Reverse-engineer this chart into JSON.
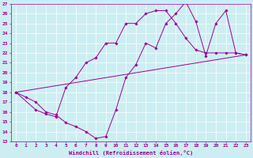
{
  "xlabel": "Windchill (Refroidissement éolien,°C)",
  "bg_color": "#cceef2",
  "line_color": "#990099",
  "xlim": [
    -0.5,
    23.5
  ],
  "ylim": [
    13,
    27
  ],
  "xticks": [
    0,
    1,
    2,
    3,
    4,
    5,
    6,
    7,
    8,
    9,
    10,
    11,
    12,
    13,
    14,
    15,
    16,
    17,
    18,
    19,
    20,
    21,
    22,
    23
  ],
  "yticks": [
    13,
    14,
    15,
    16,
    17,
    18,
    19,
    20,
    21,
    22,
    23,
    24,
    25,
    26,
    27
  ],
  "line1": [
    [
      0,
      18
    ],
    [
      1,
      17.5
    ],
    [
      2,
      17
    ],
    [
      3,
      16
    ],
    [
      4,
      15.7
    ],
    [
      5,
      14.9
    ],
    [
      6,
      14.5
    ],
    [
      7,
      14
    ],
    [
      8,
      13.3
    ],
    [
      9,
      13.5
    ],
    [
      10,
      16.2
    ],
    [
      11,
      19.5
    ],
    [
      12,
      20.8
    ],
    [
      13,
      23
    ],
    [
      14,
      22.5
    ],
    [
      15,
      25
    ],
    [
      16,
      26
    ],
    [
      17,
      27.2
    ],
    [
      18,
      25.2
    ],
    [
      19,
      21.7
    ],
    [
      20,
      25
    ],
    [
      21,
      26.3
    ],
    [
      22,
      22
    ],
    [
      23,
      21.8
    ]
  ],
  "line2": [
    [
      0,
      18
    ],
    [
      2,
      16.2
    ],
    [
      3,
      15.8
    ],
    [
      4,
      15.5
    ],
    [
      5,
      18.5
    ],
    [
      6,
      19.5
    ],
    [
      7,
      21
    ],
    [
      8,
      21.5
    ],
    [
      9,
      23
    ],
    [
      10,
      23
    ],
    [
      11,
      25
    ],
    [
      12,
      25
    ],
    [
      13,
      26
    ],
    [
      14,
      26.3
    ],
    [
      15,
      26.3
    ],
    [
      16,
      25
    ],
    [
      17,
      23.5
    ],
    [
      18,
      22.3
    ],
    [
      19,
      22
    ],
    [
      20,
      22
    ],
    [
      21,
      22
    ],
    [
      22,
      22
    ],
    [
      23,
      21.8
    ]
  ],
  "line3": [
    [
      0,
      18
    ],
    [
      23,
      21.8
    ]
  ]
}
